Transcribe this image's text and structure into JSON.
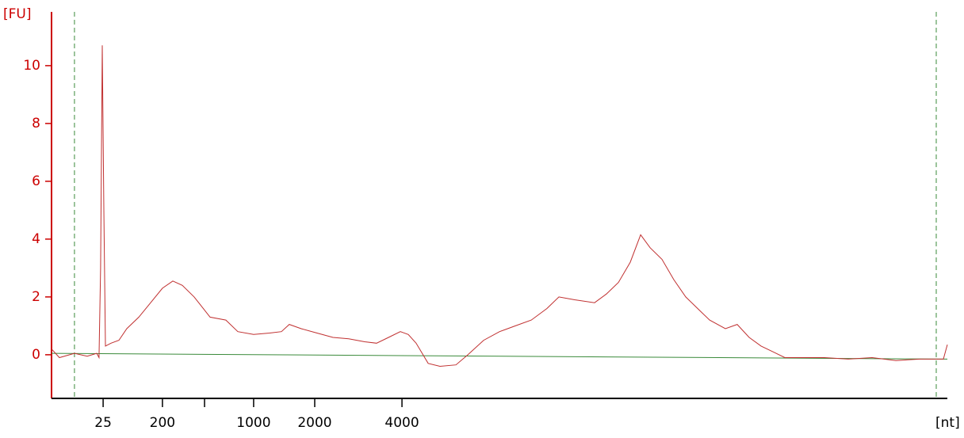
{
  "chart_data": {
    "type": "line",
    "y_label": "[FU]",
    "x_label": "[nt]",
    "xlim": [
      19,
      69
    ],
    "ylim": [
      -1.51,
      11.86
    ],
    "yticks": [
      0,
      2,
      4,
      6,
      8,
      10
    ],
    "xticks": [
      {
        "value": 21.88,
        "label": "25"
      },
      {
        "value": 25.19,
        "label": "200"
      },
      {
        "value": 27.54,
        "label": null
      },
      {
        "value": 30.28,
        "label": "1000"
      },
      {
        "value": 33.69,
        "label": "2000"
      },
      {
        "value": 38.56,
        "label": "4000"
      }
    ],
    "markers": [
      20.28,
      68.38
    ],
    "marker_color": "#3a8a3a",
    "axis_color": "#cc0000",
    "series": [
      {
        "color": "#c03030",
        "x": [
          19.0,
          19.44,
          20.28,
          20.99,
          21.52,
          21.65,
          21.74,
          21.83,
          21.92,
          22.01,
          22.32,
          22.76,
          23.2,
          23.87,
          24.53,
          25.19,
          25.77,
          26.3,
          26.96,
          27.85,
          28.73,
          29.4,
          30.28,
          31.17,
          31.83,
          32.27,
          32.94,
          33.82,
          34.71,
          35.59,
          36.48,
          37.14,
          37.81,
          38.47,
          38.91,
          39.35,
          40.02,
          40.68,
          41.57,
          42.24,
          43.12,
          44.01,
          44.89,
          45.78,
          46.65,
          47.32,
          48.2,
          49.31,
          49.97,
          50.64,
          51.3,
          51.88,
          52.41,
          53.07,
          53.73,
          54.4,
          55.06,
          55.73,
          56.61,
          57.27,
          57.94,
          58.6,
          59.27,
          59.93,
          60.81,
          62.14,
          63.47,
          64.8,
          66.13,
          67.46,
          68.78,
          69.0
        ],
        "values": [
          0.2,
          -0.1,
          0.05,
          -0.05,
          0.05,
          -0.1,
          3,
          10.7,
          5,
          0.3,
          0.4,
          0.5,
          0.9,
          1.3,
          1.8,
          2.3,
          2.55,
          2.4,
          2.0,
          1.3,
          1.2,
          0.8,
          0.7,
          0.75,
          0.8,
          1.05,
          0.9,
          0.75,
          0.6,
          0.55,
          0.45,
          0.4,
          0.6,
          0.8,
          0.7,
          0.4,
          -0.3,
          -0.4,
          -0.35,
          0,
          0.5,
          0.8,
          1.0,
          1.2,
          1.6,
          2.0,
          1.9,
          1.8,
          2.1,
          2.5,
          3.2,
          4.15,
          3.7,
          3.3,
          2.6,
          2.0,
          1.6,
          1.2,
          0.9,
          1.05,
          0.6,
          0.3,
          0.1,
          -0.1,
          -0.1,
          -0.1,
          -0.15,
          -0.1,
          -0.2,
          -0.15,
          -0.15,
          0.35
        ]
      },
      {
        "color": "#3a8a3a",
        "x": [
          19,
          69
        ],
        "values": [
          0.05,
          -0.15
        ]
      }
    ]
  }
}
